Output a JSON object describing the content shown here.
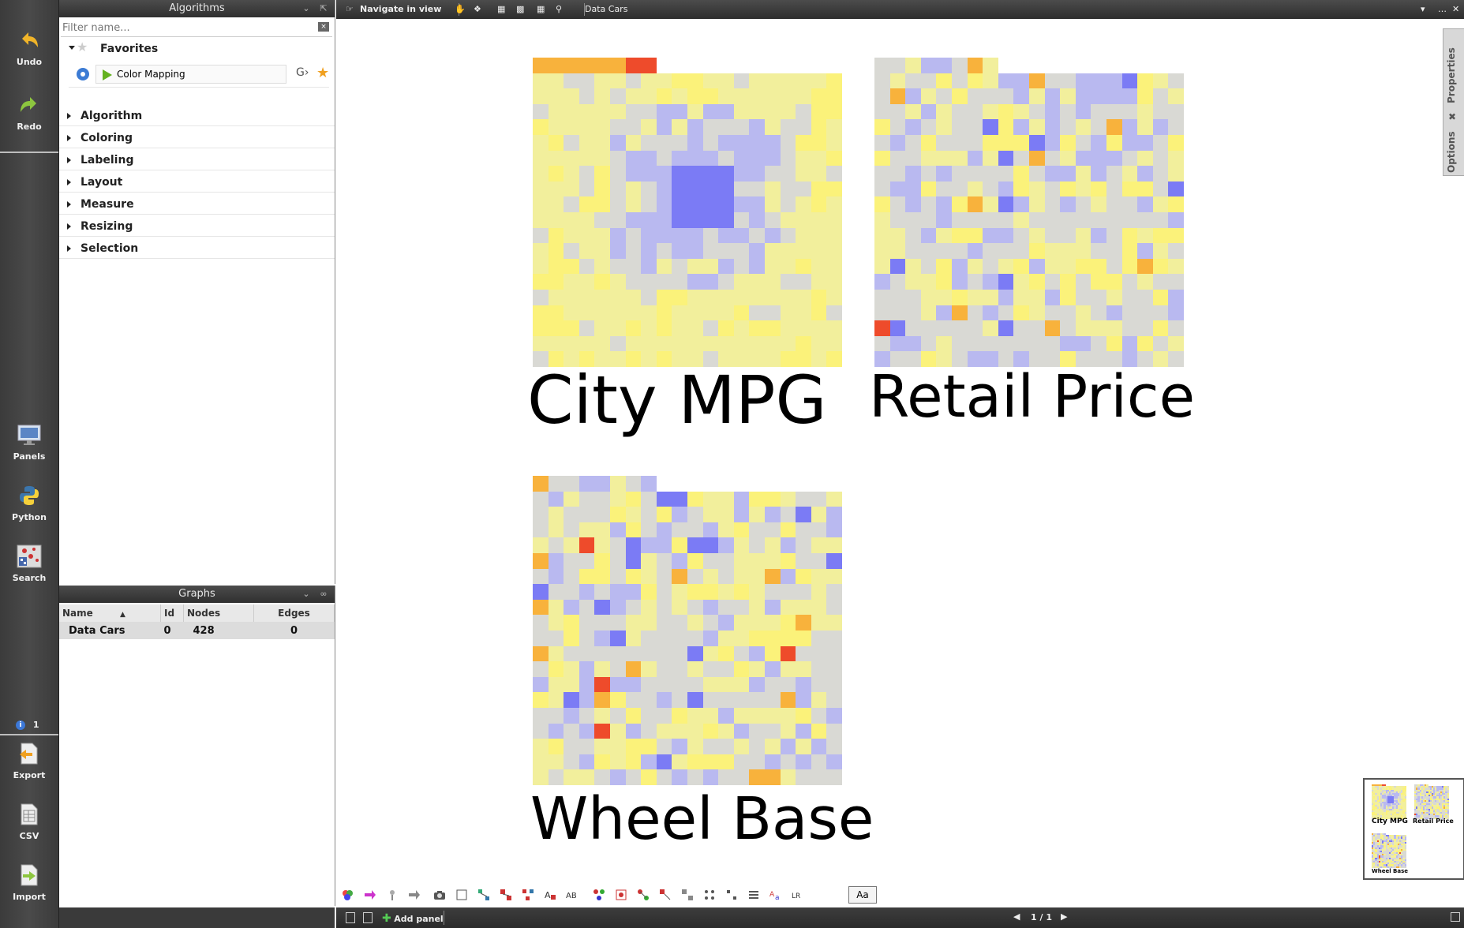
{
  "left_toolbar": {
    "undo": "Undo",
    "redo": "Redo",
    "panels": "Panels",
    "python": "Python",
    "search": "Search",
    "info_count": "1",
    "export": "Export",
    "csv": "CSV",
    "import": "Import"
  },
  "algorithms": {
    "title": "Algorithms",
    "filter_placeholder": "Filter name...",
    "favorites_label": "Favorites",
    "favorite_item": "Color Mapping",
    "categories": [
      "Algorithm",
      "Coloring",
      "Labeling",
      "Layout",
      "Measure",
      "Resizing",
      "Selection"
    ]
  },
  "graphs": {
    "title": "Graphs",
    "columns": [
      "Name",
      "Id",
      "Nodes",
      "Edges"
    ],
    "rows": [
      [
        "Data Cars",
        "0",
        "428",
        "0"
      ]
    ]
  },
  "workspace": {
    "mode_label": "Navigate in view",
    "graph_name": "Data Cars",
    "page_indicator": "1 / 1",
    "add_panel": "Add panel",
    "font_button": "Aa",
    "side_tabs": [
      "Properties",
      "Options"
    ]
  },
  "panels": [
    {
      "label": "City MPG"
    },
    {
      "label": "Retail Price"
    },
    {
      "label": "Wheel Base"
    }
  ],
  "thumbnail": {
    "labels": [
      "City MPG",
      "Retail Price",
      "Wheel Base"
    ]
  },
  "colors": {
    "blue": "#7b7bf5",
    "light_blue": "#b9b9f0",
    "grey": "#d9d9d4",
    "light_yellow": "#f2ef9c",
    "yellow": "#fbf27a",
    "orange": "#f8b23c",
    "red": "#ee4b2b"
  }
}
